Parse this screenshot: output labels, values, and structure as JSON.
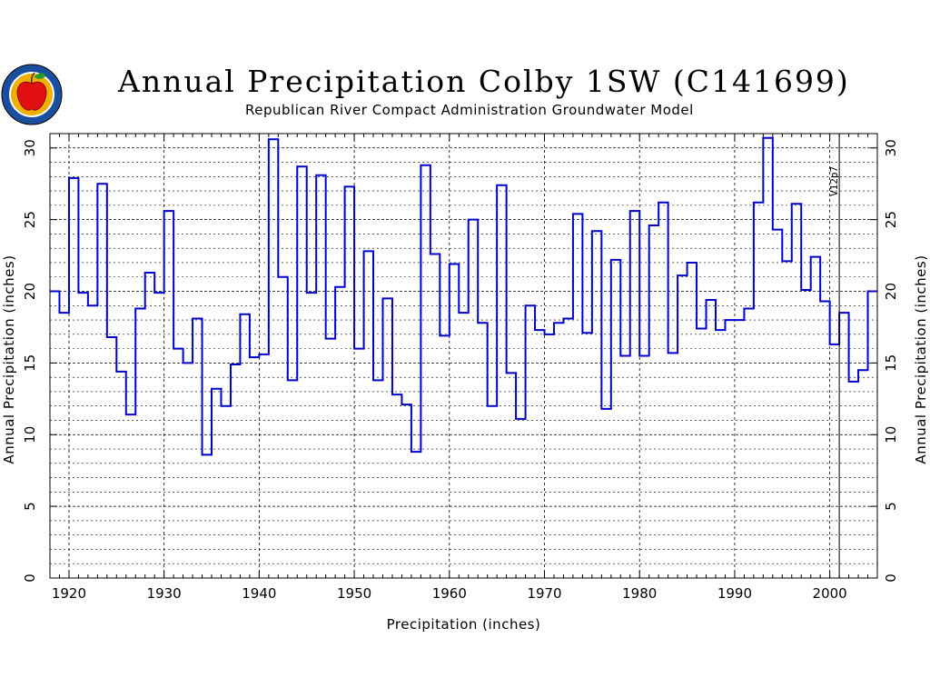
{
  "header": {
    "title": "Annual Precipitation Colby 1SW (C141699)",
    "subtitle": "Republican River Compact Administration Groundwater Model"
  },
  "logo": {
    "icon": "apple-seal-logo",
    "colors": {
      "ring": "#1a4fa0",
      "apple": "#e01010",
      "leaf": "#2a9a2a",
      "field": "#f0b000"
    }
  },
  "colors": {
    "line": "#0000cc",
    "grid": "#000000",
    "background": "#ffffff"
  },
  "chart_data": {
    "type": "line",
    "style": "step",
    "title": "Annual Precipitation Colby 1SW (C141699)",
    "subtitle": "Republican River Compact Administration Groundwater Model",
    "xlabel": "Precipitation (inches)",
    "ylabel_left": "Annual Precipitation (inches)",
    "ylabel_right": "Annual Precipitation (inches)",
    "xlim": [
      1918,
      2005
    ],
    "ylim": [
      0,
      31
    ],
    "x_ticks": [
      1920,
      1930,
      1940,
      1950,
      1960,
      1970,
      1980,
      1990,
      2000
    ],
    "y_ticks": [
      0,
      5,
      10,
      15,
      20,
      25,
      30
    ],
    "grid": true,
    "annotation": {
      "text": "V12p7",
      "x": 2001
    },
    "series": [
      {
        "x": [
          1918,
          1919,
          1920,
          1921,
          1922,
          1923,
          1924,
          1925,
          1926,
          1927,
          1928,
          1929,
          1930,
          1931,
          1932,
          1933,
          1934,
          1935,
          1936,
          1937,
          1938,
          1939,
          1940,
          1941,
          1942,
          1943,
          1944,
          1945,
          1946,
          1947,
          1948,
          1949,
          1950,
          1951,
          1952,
          1953,
          1954,
          1955,
          1956,
          1957,
          1958,
          1959,
          1960,
          1961,
          1962,
          1963,
          1964,
          1965,
          1966,
          1967,
          1968,
          1969,
          1970,
          1971,
          1972,
          1973,
          1974,
          1975,
          1976,
          1977,
          1978,
          1979,
          1980,
          1981,
          1982,
          1983,
          1984,
          1985,
          1986,
          1987,
          1988,
          1989,
          1990,
          1991,
          1992,
          1993,
          1994,
          1995,
          1996,
          1997,
          1998,
          1999,
          2000,
          2001,
          2002,
          2003,
          2004
        ],
        "values": [
          20.0,
          18.5,
          27.9,
          19.9,
          19.0,
          27.5,
          16.8,
          14.4,
          11.4,
          18.8,
          21.3,
          19.9,
          25.6,
          16.0,
          15.0,
          18.1,
          8.6,
          13.2,
          12.0,
          14.9,
          18.4,
          15.4,
          15.6,
          30.6,
          21.0,
          13.8,
          28.7,
          19.9,
          28.1,
          16.7,
          20.3,
          27.3,
          16.0,
          22.8,
          13.8,
          19.5,
          12.8,
          12.1,
          8.8,
          28.8,
          22.6,
          16.9,
          21.9,
          18.5,
          25.0,
          17.8,
          12.0,
          27.4,
          14.3,
          11.1,
          19.0,
          17.3,
          17.0,
          17.8,
          18.1,
          25.4,
          17.1,
          24.2,
          11.8,
          22.2,
          15.5,
          25.6,
          15.5,
          24.6,
          26.2,
          15.7,
          21.1,
          22.0,
          17.4,
          19.4,
          17.3,
          18.0,
          18.0,
          18.8,
          26.2,
          30.7,
          24.3,
          22.1,
          26.1,
          20.1,
          22.4,
          19.3,
          16.3,
          18.5,
          13.7,
          14.5,
          20.0
        ]
      }
    ]
  }
}
